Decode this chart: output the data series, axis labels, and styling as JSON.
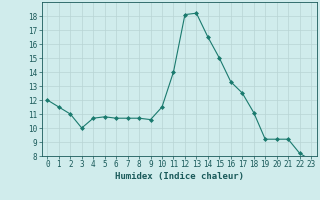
{
  "x": [
    0,
    1,
    2,
    3,
    4,
    5,
    6,
    7,
    8,
    9,
    10,
    11,
    12,
    13,
    14,
    15,
    16,
    17,
    18,
    19,
    20,
    21,
    22,
    23
  ],
  "y": [
    12.0,
    11.5,
    11.0,
    10.0,
    10.7,
    10.8,
    10.7,
    10.7,
    10.7,
    10.6,
    11.5,
    14.0,
    18.1,
    18.2,
    16.5,
    15.0,
    13.3,
    12.5,
    11.1,
    9.2,
    9.2,
    9.2,
    8.2,
    7.7
  ],
  "xlabel": "Humidex (Indice chaleur)",
  "ylim": [
    8,
    19
  ],
  "xlim": [
    -0.5,
    23.5
  ],
  "yticks": [
    8,
    9,
    10,
    11,
    12,
    13,
    14,
    15,
    16,
    17,
    18
  ],
  "xticks": [
    0,
    1,
    2,
    3,
    4,
    5,
    6,
    7,
    8,
    9,
    10,
    11,
    12,
    13,
    14,
    15,
    16,
    17,
    18,
    19,
    20,
    21,
    22,
    23
  ],
  "xtick_labels": [
    "0",
    "1",
    "2",
    "3",
    "4",
    "5",
    "6",
    "7",
    "8",
    "9",
    "10",
    "11",
    "12",
    "13",
    "14",
    "15",
    "16",
    "17",
    "18",
    "19",
    "20",
    "21",
    "22",
    "23"
  ],
  "line_color": "#1a7a6e",
  "marker_color": "#1a7a6e",
  "bg_color": "#d0ecec",
  "grid_color": "#b8d4d4",
  "text_color": "#1a5a5a",
  "xlabel_fontsize": 6.5,
  "tick_fontsize": 5.5
}
